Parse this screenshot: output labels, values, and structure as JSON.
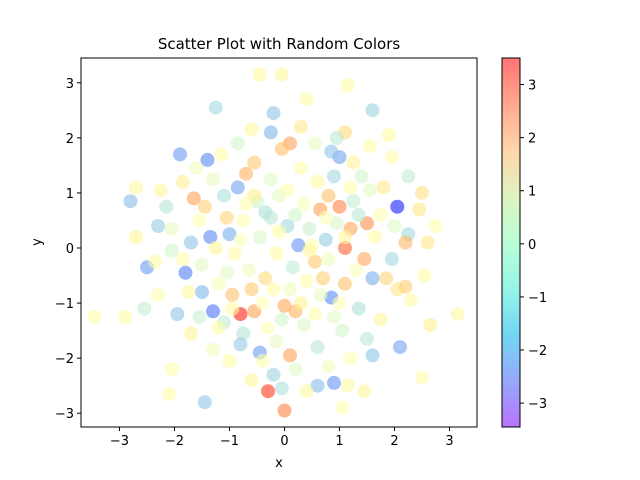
{
  "chart_data": {
    "type": "scatter",
    "title": "Scatter Plot with Random Colors",
    "xlabel": "x",
    "ylabel": "y",
    "xlim": [
      -3.7,
      3.5
    ],
    "ylim": [
      -3.25,
      3.45
    ],
    "xticks": [
      "−3",
      "−2",
      "−1",
      "0",
      "1",
      "2",
      "3"
    ],
    "yticks": [
      "−3",
      "−2",
      "−1",
      "0",
      "1",
      "2",
      "3"
    ],
    "grid": false,
    "marker_alpha": 0.6,
    "colormap": "rainbow",
    "colorbar": {
      "range": [
        -3.45,
        3.5
      ],
      "ticks": [
        "−3",
        "−2",
        "−1",
        "0",
        "1",
        "2",
        "3"
      ]
    },
    "points": [
      {
        "x": -1.25,
        "y": 2.55,
        "c": -1.2
      },
      {
        "x": -0.45,
        "y": 3.15,
        "c": 0.5
      },
      {
        "x": -0.05,
        "y": 3.15,
        "c": 0.6
      },
      {
        "x": 1.15,
        "y": 2.95,
        "c": 0.4
      },
      {
        "x": 1.6,
        "y": 2.5,
        "c": -1.3
      },
      {
        "x": -1.9,
        "y": 1.7,
        "c": -2.0
      },
      {
        "x": -1.4,
        "y": 1.6,
        "c": -2.2
      },
      {
        "x": -0.2,
        "y": 2.45,
        "c": -1.5
      },
      {
        "x": 0.4,
        "y": 2.7,
        "c": 0.3
      },
      {
        "x": 1.0,
        "y": 1.65,
        "c": -1.9
      },
      {
        "x": 2.05,
        "y": 0.75,
        "c": -3.2
      },
      {
        "x": -2.8,
        "y": 0.85,
        "c": -1.6
      },
      {
        "x": -2.7,
        "y": 1.1,
        "c": 0.5
      },
      {
        "x": -2.7,
        "y": 0.2,
        "c": 0.7
      },
      {
        "x": -3.45,
        "y": -1.25,
        "c": 0.4
      },
      {
        "x": -2.9,
        "y": -1.25,
        "c": 0.4
      },
      {
        "x": -2.55,
        "y": -1.1,
        "c": -0.8
      },
      {
        "x": -2.5,
        "y": -0.35,
        "c": -2.0
      },
      {
        "x": -2.3,
        "y": 0.4,
        "c": -1.4
      },
      {
        "x": -2.05,
        "y": -2.2,
        "c": 0.2
      },
      {
        "x": -2.1,
        "y": -2.65,
        "c": 0.3
      },
      {
        "x": -1.45,
        "y": -2.8,
        "c": -1.5
      },
      {
        "x": -1.3,
        "y": -1.15,
        "c": -2.4
      },
      {
        "x": -0.55,
        "y": -1.15,
        "c": 2.0
      },
      {
        "x": -0.8,
        "y": -1.2,
        "c": 3.2
      },
      {
        "x": -0.3,
        "y": -2.6,
        "c": 3.0
      },
      {
        "x": 0.0,
        "y": -2.95,
        "c": 2.3
      },
      {
        "x": 0.1,
        "y": -1.95,
        "c": 2.0
      },
      {
        "x": 0.2,
        "y": -1.15,
        "c": 1.8
      },
      {
        "x": 0.0,
        "y": -1.05,
        "c": 1.9
      },
      {
        "x": 0.6,
        "y": -2.5,
        "c": -1.6
      },
      {
        "x": 0.9,
        "y": -2.45,
        "c": -2.1
      },
      {
        "x": 1.05,
        "y": -2.9,
        "c": 0.2
      },
      {
        "x": 1.15,
        "y": -2.5,
        "c": 0.5
      },
      {
        "x": 1.45,
        "y": -2.6,
        "c": 0.6
      },
      {
        "x": 1.6,
        "y": -1.95,
        "c": -1.5
      },
      {
        "x": 2.1,
        "y": -1.8,
        "c": -1.9
      },
      {
        "x": 2.5,
        "y": -2.35,
        "c": 0.3
      },
      {
        "x": 2.65,
        "y": -1.4,
        "c": 0.8
      },
      {
        "x": 3.15,
        "y": -1.2,
        "c": 0.5
      },
      {
        "x": 2.55,
        "y": -0.5,
        "c": 0.3
      },
      {
        "x": 2.45,
        "y": 0.7,
        "c": 1.0
      },
      {
        "x": 2.5,
        "y": 1.0,
        "c": 1.1
      },
      {
        "x": 2.6,
        "y": 0.1,
        "c": 1.0
      },
      {
        "x": 2.75,
        "y": 0.4,
        "c": 0.2
      },
      {
        "x": 2.25,
        "y": 0.25,
        "c": -1.2
      },
      {
        "x": 2.25,
        "y": 1.3,
        "c": -0.8
      },
      {
        "x": 1.95,
        "y": 1.65,
        "c": 0.3
      },
      {
        "x": 1.9,
        "y": 2.05,
        "c": 0.4
      },
      {
        "x": 1.55,
        "y": 1.85,
        "c": 0.4
      },
      {
        "x": 1.1,
        "y": 2.1,
        "c": 1.2
      },
      {
        "x": 0.95,
        "y": 2.0,
        "c": -0.9
      },
      {
        "x": 1.0,
        "y": 0.75,
        "c": 2.3
      },
      {
        "x": 1.1,
        "y": 0.0,
        "c": 2.6
      },
      {
        "x": 2.2,
        "y": 0.1,
        "c": 1.7
      },
      {
        "x": 2.05,
        "y": -0.75,
        "c": 1.0
      },
      {
        "x": 2.2,
        "y": -0.7,
        "c": 1.4
      },
      {
        "x": 1.85,
        "y": -0.55,
        "c": 1.3
      },
      {
        "x": 1.45,
        "y": -0.2,
        "c": 1.9
      },
      {
        "x": 1.5,
        "y": 0.45,
        "c": 2.2
      },
      {
        "x": 1.2,
        "y": 0.35,
        "c": 1.9
      },
      {
        "x": 0.8,
        "y": 0.95,
        "c": 1.6
      },
      {
        "x": 0.65,
        "y": 0.7,
        "c": 2.0
      },
      {
        "x": 0.1,
        "y": 1.9,
        "c": 2.0
      },
      {
        "x": -0.05,
        "y": 1.8,
        "c": 1.6
      },
      {
        "x": -0.55,
        "y": 1.55,
        "c": 1.5
      },
      {
        "x": -0.7,
        "y": 1.35,
        "c": 1.8
      },
      {
        "x": -1.65,
        "y": 0.9,
        "c": 2.0
      },
      {
        "x": -1.45,
        "y": 0.75,
        "c": 1.4
      },
      {
        "x": -1.05,
        "y": 0.55,
        "c": 1.3
      },
      {
        "x": -0.95,
        "y": -0.85,
        "c": 1.6
      },
      {
        "x": -0.6,
        "y": -0.75,
        "c": 1.5
      },
      {
        "x": -0.35,
        "y": -0.55,
        "c": 1.2
      },
      {
        "x": 0.55,
        "y": -0.25,
        "c": 1.5
      },
      {
        "x": 0.7,
        "y": -0.55,
        "c": 1.4
      },
      {
        "x": 1.1,
        "y": -0.65,
        "c": 1.6
      },
      {
        "x": 0.85,
        "y": -0.9,
        "c": -2.2
      },
      {
        "x": 0.9,
        "y": -1.25,
        "c": -0.4
      },
      {
        "x": 0.35,
        "y": -1.4,
        "c": -0.5
      },
      {
        "x": -0.15,
        "y": -1.7,
        "c": -0.3
      },
      {
        "x": -0.45,
        "y": -1.9,
        "c": -2.0
      },
      {
        "x": -0.75,
        "y": -1.55,
        "c": -1.0
      },
      {
        "x": -1.1,
        "y": -1.35,
        "c": -0.8
      },
      {
        "x": -1.5,
        "y": -0.8,
        "c": -1.7
      },
      {
        "x": -1.8,
        "y": -0.45,
        "c": -2.3
      },
      {
        "x": -2.05,
        "y": -0.05,
        "c": -0.6
      },
      {
        "x": -2.05,
        "y": 0.35,
        "c": -0.3
      },
      {
        "x": -1.7,
        "y": 0.1,
        "c": -1.5
      },
      {
        "x": -1.35,
        "y": 0.2,
        "c": -2.2
      },
      {
        "x": -1.1,
        "y": 0.95,
        "c": -1.1
      },
      {
        "x": -0.85,
        "y": 1.1,
        "c": -1.9
      },
      {
        "x": -0.5,
        "y": 0.85,
        "c": -0.6
      },
      {
        "x": -0.25,
        "y": 0.55,
        "c": -0.9
      },
      {
        "x": 0.05,
        "y": 0.4,
        "c": -1.2
      },
      {
        "x": 0.25,
        "y": 0.05,
        "c": -2.1
      },
      {
        "x": 0.45,
        "y": 0.35,
        "c": -0.7
      },
      {
        "x": 0.75,
        "y": 0.15,
        "c": -1.4
      },
      {
        "x": 0.95,
        "y": 0.45,
        "c": -0.5
      },
      {
        "x": 1.25,
        "y": 0.85,
        "c": -0.8
      },
      {
        "x": 1.55,
        "y": 1.05,
        "c": -0.3
      },
      {
        "x": 1.75,
        "y": 0.6,
        "c": 0.2
      },
      {
        "x": 1.6,
        "y": -0.55,
        "c": -1.8
      },
      {
        "x": 1.35,
        "y": -1.1,
        "c": -1.1
      },
      {
        "x": 1.05,
        "y": -1.5,
        "c": -0.6
      },
      {
        "x": 0.6,
        "y": -1.8,
        "c": -0.9
      },
      {
        "x": 0.2,
        "y": -2.2,
        "c": -0.4
      },
      {
        "x": -0.2,
        "y": -2.3,
        "c": -1.3
      },
      {
        "x": -0.6,
        "y": -2.4,
        "c": 0.6
      },
      {
        "x": -1.0,
        "y": -2.05,
        "c": 0.4
      },
      {
        "x": -1.3,
        "y": -1.85,
        "c": -0.2
      },
      {
        "x": -1.7,
        "y": -1.55,
        "c": 0.7
      },
      {
        "x": -1.95,
        "y": -1.2,
        "c": -1.5
      },
      {
        "x": -2.3,
        "y": -0.85,
        "c": 0.2
      },
      {
        "x": -2.35,
        "y": -0.25,
        "c": 0.4
      },
      {
        "x": -2.15,
        "y": 0.75,
        "c": -1.0
      },
      {
        "x": -2.25,
        "y": 1.05,
        "c": 0.6
      },
      {
        "x": -1.85,
        "y": 1.2,
        "c": 0.8
      },
      {
        "x": -1.6,
        "y": 1.45,
        "c": -0.2
      },
      {
        "x": -1.15,
        "y": 1.7,
        "c": 0.3
      },
      {
        "x": -0.85,
        "y": 1.9,
        "c": -0.6
      },
      {
        "x": -0.6,
        "y": 2.15,
        "c": 0.5
      },
      {
        "x": -0.25,
        "y": 2.1,
        "c": -1.7
      },
      {
        "x": 0.3,
        "y": 2.2,
        "c": 0.9
      },
      {
        "x": 0.55,
        "y": 1.9,
        "c": -0.3
      },
      {
        "x": 0.85,
        "y": 1.75,
        "c": -1.5
      },
      {
        "x": 1.25,
        "y": 1.55,
        "c": 0.7
      },
      {
        "x": 1.4,
        "y": 1.3,
        "c": -0.6
      },
      {
        "x": 1.8,
        "y": 1.1,
        "c": 0.9
      },
      {
        "x": 2.0,
        "y": 0.4,
        "c": -0.4
      },
      {
        "x": 1.95,
        "y": -0.2,
        "c": -1.2
      },
      {
        "x": 2.3,
        "y": -0.95,
        "c": 0.3
      },
      {
        "x": 1.75,
        "y": -1.3,
        "c": 0.6
      },
      {
        "x": 1.5,
        "y": -1.65,
        "c": -0.9
      },
      {
        "x": 1.2,
        "y": -2.0,
        "c": 0.1
      },
      {
        "x": 0.8,
        "y": -2.15,
        "c": -0.2
      },
      {
        "x": 0.4,
        "y": -2.6,
        "c": 0.5
      },
      {
        "x": -0.05,
        "y": -2.55,
        "c": -1.1
      },
      {
        "x": -0.4,
        "y": -2.05,
        "c": 0.2
      },
      {
        "x": -0.8,
        "y": -1.75,
        "c": -1.4
      },
      {
        "x": -1.2,
        "y": -1.45,
        "c": 0.3
      },
      {
        "x": -1.55,
        "y": -1.25,
        "c": -0.7
      },
      {
        "x": -1.75,
        "y": -0.8,
        "c": 0.5
      },
      {
        "x": -1.5,
        "y": -0.3,
        "c": -0.4
      },
      {
        "x": -1.25,
        "y": 0.0,
        "c": 0.6
      },
      {
        "x": -1.0,
        "y": 0.25,
        "c": -1.8
      },
      {
        "x": -0.75,
        "y": 0.5,
        "c": 0.1
      },
      {
        "x": -0.45,
        "y": 0.2,
        "c": -0.5
      },
      {
        "x": -0.15,
        "y": -0.1,
        "c": 0.4
      },
      {
        "x": 0.15,
        "y": -0.35,
        "c": -0.8
      },
      {
        "x": 0.4,
        "y": -0.6,
        "c": 0.2
      },
      {
        "x": 0.65,
        "y": -0.85,
        "c": -0.3
      },
      {
        "x": 0.3,
        "y": -1.0,
        "c": 0.7
      },
      {
        "x": -0.05,
        "y": -1.3,
        "c": -0.6
      },
      {
        "x": -0.4,
        "y": -1.0,
        "c": 0.0
      },
      {
        "x": -0.65,
        "y": -0.4,
        "c": -0.2
      },
      {
        "x": -0.9,
        "y": -0.1,
        "c": 0.3
      },
      {
        "x": -0.55,
        "y": 0.95,
        "c": 0.8
      },
      {
        "x": -0.25,
        "y": 1.25,
        "c": -0.4
      },
      {
        "x": 0.05,
        "y": 1.05,
        "c": 0.2
      },
      {
        "x": 0.35,
        "y": 0.8,
        "c": -0.1
      },
      {
        "x": 0.6,
        "y": 1.2,
        "c": 0.5
      },
      {
        "x": 0.9,
        "y": 1.3,
        "c": -1.2
      },
      {
        "x": 1.2,
        "y": 1.1,
        "c": 0.3
      },
      {
        "x": 1.35,
        "y": 0.6,
        "c": -0.9
      },
      {
        "x": 1.1,
        "y": 0.2,
        "c": 0.6
      },
      {
        "x": 0.8,
        "y": -0.2,
        "c": -0.2
      },
      {
        "x": 0.5,
        "y": 0.05,
        "c": 0.1
      },
      {
        "x": 0.2,
        "y": 0.6,
        "c": -0.6
      },
      {
        "x": -0.1,
        "y": 0.3,
        "c": 0.4
      },
      {
        "x": -0.35,
        "y": 0.65,
        "c": -1.1
      },
      {
        "x": -0.7,
        "y": 0.8,
        "c": 0.2
      },
      {
        "x": -1.3,
        "y": 1.25,
        "c": -0.3
      },
      {
        "x": -1.55,
        "y": 0.5,
        "c": 0.1
      },
      {
        "x": -1.85,
        "y": -0.2,
        "c": 0.3
      },
      {
        "x": -1.2,
        "y": -0.65,
        "c": -0.1
      },
      {
        "x": -0.95,
        "y": -1.1,
        "c": 0.4
      },
      {
        "x": -0.3,
        "y": -1.45,
        "c": 0.0
      },
      {
        "x": 0.1,
        "y": -0.75,
        "c": -0.2
      },
      {
        "x": 0.55,
        "y": -1.2,
        "c": 0.3
      },
      {
        "x": 1.3,
        "y": -0.4,
        "c": -0.1
      },
      {
        "x": 1.65,
        "y": 0.2,
        "c": 0.4
      },
      {
        "x": 1.0,
        "y": -1.0,
        "c": 0.1
      },
      {
        "x": -0.1,
        "y": 0.95,
        "c": -0.3
      },
      {
        "x": 0.3,
        "y": 1.45,
        "c": 0.2
      },
      {
        "x": -0.8,
        "y": 0.15,
        "c": -0.1
      },
      {
        "x": -0.2,
        "y": -0.75,
        "c": 0.3
      },
      {
        "x": 0.75,
        "y": 0.55,
        "c": 0.0
      },
      {
        "x": -1.05,
        "y": -0.45,
        "c": -0.4
      },
      {
        "x": 0.45,
        "y": -0.05,
        "c": 0.5
      }
    ]
  }
}
